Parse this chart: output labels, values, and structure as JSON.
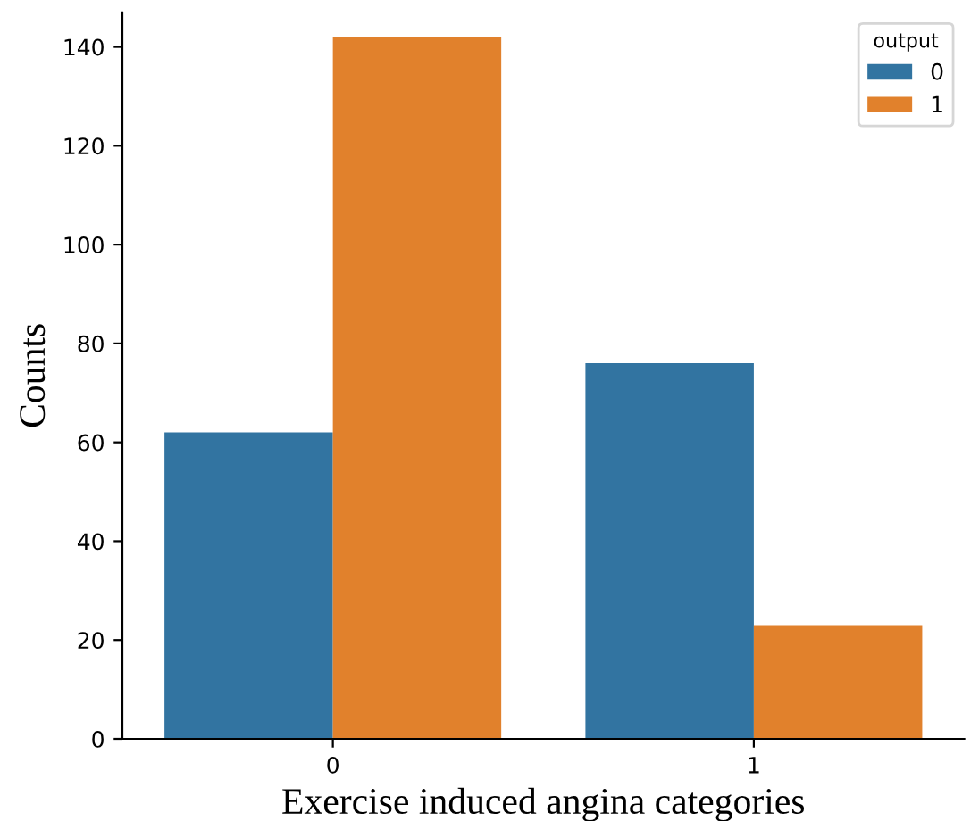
{
  "chart_data": {
    "type": "bar",
    "xlabel": "Exercise induced angina categories",
    "ylabel": "Counts",
    "categories": [
      "0",
      "1"
    ],
    "series": [
      {
        "name": "0",
        "color": "#3274a1",
        "values": [
          62,
          76
        ]
      },
      {
        "name": "1",
        "color": "#e1812c",
        "values": [
          142,
          23
        ]
      }
    ],
    "legend_title": "output",
    "legend": "top right",
    "ylim": [
      0,
      147
    ],
    "yticks": [
      0,
      20,
      40,
      60,
      80,
      100,
      120,
      140
    ],
    "grid": false
  }
}
